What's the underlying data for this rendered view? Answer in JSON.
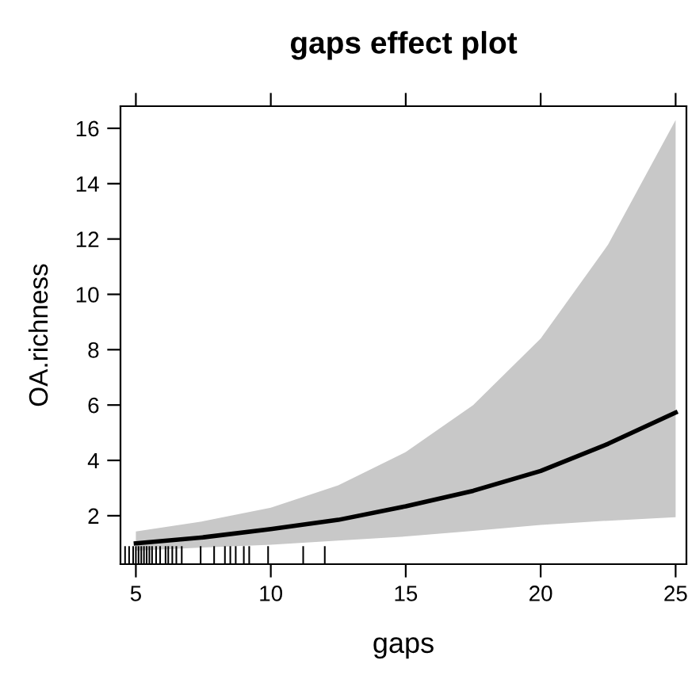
{
  "chart_data": {
    "type": "line",
    "title": "gaps effect plot",
    "xlabel": "gaps",
    "ylabel": "OA.richness",
    "xlim": [
      4.43,
      25.4
    ],
    "ylim": [
      0.25,
      16.8
    ],
    "xticks": [
      5,
      10,
      15,
      20,
      25
    ],
    "yticks": [
      2,
      4,
      6,
      8,
      10,
      12,
      14,
      16
    ],
    "grid": false,
    "series": [
      {
        "color": "#000000",
        "x": [
          5,
          7.5,
          10,
          12.5,
          15,
          17.5,
          20,
          22.5,
          25
        ],
        "values": [
          1.0,
          1.22,
          1.52,
          1.85,
          2.34,
          2.9,
          3.62,
          4.6,
          5.73
        ],
        "lower": [
          0.74,
          0.85,
          0.95,
          1.1,
          1.25,
          1.45,
          1.67,
          1.82,
          1.95
        ],
        "upper": [
          1.43,
          1.8,
          2.29,
          3.1,
          4.3,
          6.0,
          8.4,
          11.8,
          16.3
        ]
      },
      {
        "type": "bar",
        "color": "#000000",
        "x": [
          4.6,
          4.75,
          4.9,
          5.0,
          5.1,
          5.2,
          5.3,
          5.4,
          5.5,
          5.6,
          5.75,
          5.9,
          6.1,
          6.2,
          6.35,
          6.5,
          6.7,
          7.4,
          7.9,
          8.3,
          8.5,
          8.7,
          9.0,
          9.2,
          9.9,
          11.2,
          12.0
        ],
        "values": [
          0.9,
          0.9,
          0.9,
          0.9,
          0.9,
          0.9,
          0.9,
          0.9,
          0.9,
          0.9,
          0.9,
          0.9,
          0.9,
          0.9,
          0.9,
          0.9,
          0.9,
          0.9,
          0.9,
          0.9,
          0.9,
          0.9,
          0.9,
          0.9,
          0.9,
          0.9,
          0.9
        ]
      }
    ]
  }
}
